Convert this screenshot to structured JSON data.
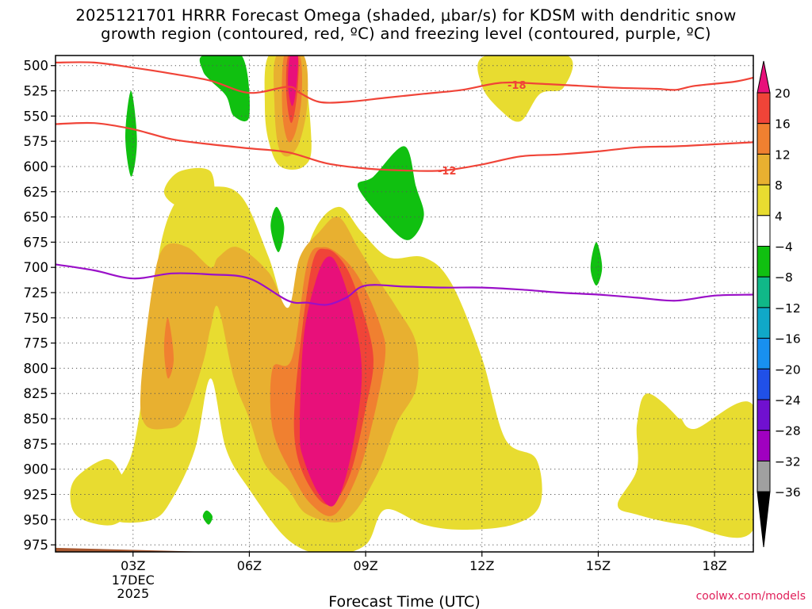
{
  "title_line1": "2025121701 HRRR Forecast Omega (shaded, μbar/s) for KDSM with dendritic snow",
  "title_line2": "growth region (contoured, red, ºC) and freezing level (contoured, purple, ºC)",
  "credit": "coolwx.com/models",
  "chart_data": {
    "type": "heatmap",
    "xlabel": "Forecast Time (UTC)",
    "ylabel": "",
    "xlim": [
      1,
      19
    ],
    "ylim": [
      490,
      982
    ],
    "x_ticks": [
      {
        "x": 3,
        "label": "03Z"
      },
      {
        "x": 6,
        "label": "06Z"
      },
      {
        "x": 9,
        "label": "09Z"
      },
      {
        "x": 12,
        "label": "12Z"
      },
      {
        "x": 15,
        "label": "15Z"
      },
      {
        "x": 18,
        "label": "18Z"
      }
    ],
    "date_label": [
      "17DEC",
      "2025"
    ],
    "y_ticks": [
      500,
      525,
      550,
      575,
      600,
      625,
      650,
      675,
      700,
      725,
      750,
      775,
      800,
      825,
      850,
      875,
      900,
      925,
      950,
      975
    ],
    "colorbar": {
      "ticks": [
        20,
        16,
        12,
        8,
        4,
        -4,
        -8,
        -12,
        -16,
        -20,
        -24,
        -28,
        -32,
        -36
      ],
      "colors": [
        "#e8107a",
        "#f04438",
        "#f08030",
        "#e8b030",
        "#e8dc30",
        "#ffffff",
        "#10c010",
        "#10b888",
        "#10a8c8",
        "#1890f0",
        "#2050e8",
        "#7010d0",
        "#a000c0",
        "#a0a0a0",
        "#000000"
      ]
    },
    "levels": [
      {
        "name": "4-8",
        "color": "#e8dc30",
        "regions": [
          [
            [
              2.5,
              920
            ],
            [
              3,
              880
            ],
            [
              3.4,
              780
            ],
            [
              3.7,
              680
            ],
            [
              4.2,
              630
            ],
            [
              5,
              620
            ],
            [
              5.8,
              630
            ],
            [
              6.5,
              690
            ],
            [
              7.1,
              755
            ],
            [
              7.6,
              670
            ],
            [
              8.3,
              640
            ],
            [
              8.9,
              665
            ],
            [
              9.6,
              690
            ],
            [
              10.5,
              690
            ],
            [
              11.2,
              715
            ],
            [
              12,
              790
            ],
            [
              12.6,
              870
            ],
            [
              13.4,
              890
            ],
            [
              13.5,
              935
            ],
            [
              12.8,
              955
            ],
            [
              11.5,
              960
            ],
            [
              10.5,
              955
            ],
            [
              9.5,
              940
            ],
            [
              9,
              975
            ],
            [
              8,
              985
            ],
            [
              7,
              970
            ],
            [
              6,
              920
            ],
            [
              5.4,
              880
            ],
            [
              5,
              810
            ],
            [
              4.6,
              880
            ],
            [
              4,
              930
            ],
            [
              3.5,
              950
            ],
            [
              2.5,
              950
            ]
          ],
          [
            [
              3.8,
              625
            ],
            [
              4.2,
              605
            ],
            [
              5,
              605
            ],
            [
              5,
              640
            ],
            [
              4.2,
              640
            ]
          ],
          [
            [
              7.3,
              490
            ],
            [
              7.6,
              575
            ],
            [
              7.4,
              600
            ],
            [
              6.8,
              600
            ],
            [
              6.5,
              575
            ],
            [
              6.4,
              540
            ],
            [
              6.5,
              490
            ]
          ],
          [
            [
              12.1,
              490
            ],
            [
              14.2,
              490
            ],
            [
              14.1,
              522
            ],
            [
              13.5,
              528
            ],
            [
              13,
              555
            ],
            [
              12.5,
              545
            ],
            [
              12,
              520
            ]
          ],
          [
            [
              16.3,
              825
            ],
            [
              17.3,
              860
            ],
            [
              17.5,
              885
            ],
            [
              17,
              880
            ],
            [
              17.1,
              850
            ],
            [
              17.5,
              860
            ],
            [
              19,
              837
            ],
            [
              19,
              960
            ],
            [
              17.2,
              955
            ],
            [
              16,
              945
            ],
            [
              15.5,
              935
            ],
            [
              16,
              900
            ],
            [
              16,
              855
            ]
          ],
          [
            [
              1.5,
              910
            ],
            [
              2.3,
              890
            ],
            [
              2.7,
              905
            ],
            [
              3,
              935
            ],
            [
              2.5,
              955
            ],
            [
              1.7,
              950
            ],
            [
              1.4,
              935
            ]
          ]
        ]
      },
      {
        "name": "8-12",
        "color": "#e8b030",
        "regions": [
          [
            [
              3.2,
              820
            ],
            [
              3.5,
              720
            ],
            [
              3.8,
              680
            ],
            [
              4.4,
              680
            ],
            [
              5,
              700
            ],
            [
              5.2,
              690
            ],
            [
              5.7,
              680
            ],
            [
              6.5,
              705
            ],
            [
              7,
              740
            ],
            [
              7.3,
              690
            ],
            [
              7.8,
              665
            ],
            [
              8.3,
              650
            ],
            [
              8.8,
              680
            ],
            [
              9.2,
              705
            ],
            [
              9.8,
              740
            ],
            [
              10.3,
              775
            ],
            [
              10.3,
              820
            ],
            [
              9.8,
              855
            ],
            [
              9.3,
              905
            ],
            [
              8.5,
              950
            ],
            [
              7.5,
              945
            ],
            [
              7,
              920
            ],
            [
              6.4,
              895
            ],
            [
              6,
              850
            ],
            [
              5.6,
              810
            ],
            [
              5.2,
              740
            ],
            [
              5,
              760
            ],
            [
              4.8,
              795
            ],
            [
              4.3,
              850
            ],
            [
              3.8,
              860
            ],
            [
              3.3,
              855
            ]
          ],
          [
            [
              6.7,
              490
            ],
            [
              7.4,
              490
            ],
            [
              7.5,
              535
            ],
            [
              7.3,
              575
            ],
            [
              7,
              590
            ],
            [
              6.75,
              580
            ],
            [
              6.65,
              540
            ]
          ]
        ]
      },
      {
        "name": "12-16",
        "color": "#f08030",
        "regions": [
          [
            [
              6.6,
              800
            ],
            [
              7.1,
              790
            ],
            [
              7.5,
              695
            ],
            [
              7.9,
              680
            ],
            [
              8.4,
              690
            ],
            [
              8.9,
              715
            ],
            [
              9.4,
              760
            ],
            [
              9.5,
              790
            ],
            [
              9.2,
              850
            ],
            [
              8.8,
              905
            ],
            [
              8.2,
              945
            ],
            [
              7.6,
              935
            ],
            [
              7.1,
              905
            ],
            [
              6.6,
              860
            ]
          ],
          [
            [
              3.9,
              750
            ],
            [
              4.05,
              790
            ],
            [
              3.9,
              810
            ],
            [
              3.8,
              780
            ]
          ],
          [
            [
              6.9,
              490
            ],
            [
              7.3,
              490
            ],
            [
              7.35,
              530
            ],
            [
              7.2,
              565
            ],
            [
              7,
              575
            ],
            [
              6.85,
              545
            ]
          ]
        ]
      },
      {
        "name": "16-20",
        "color": "#f04438",
        "regions": [
          [
            [
              7.2,
              820
            ],
            [
              7.6,
              700
            ],
            [
              8,
              682
            ],
            [
              8.5,
              700
            ],
            [
              8.9,
              740
            ],
            [
              9.2,
              790
            ],
            [
              9,
              840
            ],
            [
              8.6,
              905
            ],
            [
              8.1,
              935
            ],
            [
              7.6,
              920
            ],
            [
              7.2,
              880
            ]
          ],
          [
            [
              7,
              490
            ],
            [
              7.25,
              490
            ],
            [
              7.25,
              520
            ],
            [
              7.15,
              550
            ],
            [
              7.05,
              555
            ],
            [
              6.95,
              525
            ]
          ]
        ]
      },
      {
        "name": "20+",
        "color": "#e8107a",
        "regions": [
          [
            [
              7.3,
              860
            ],
            [
              7.4,
              770
            ],
            [
              7.7,
              715
            ],
            [
              8,
              690
            ],
            [
              8.3,
              700
            ],
            [
              8.7,
              750
            ],
            [
              8.9,
              810
            ],
            [
              8.6,
              890
            ],
            [
              8.2,
              935
            ],
            [
              7.8,
              925
            ],
            [
              7.4,
              890
            ]
          ],
          [
            [
              7.05,
              490
            ],
            [
              7.25,
              490
            ],
            [
              7.2,
              525
            ],
            [
              7.1,
              540
            ],
            [
              7,
              520
            ]
          ]
        ]
      },
      {
        "name": "-4 to -8",
        "color": "#10c010",
        "regions": [
          [
            [
              4.8,
              490
            ],
            [
              5.8,
              490
            ],
            [
              6,
              550
            ],
            [
              5.6,
              550
            ],
            [
              5.4,
              530
            ],
            [
              5,
              515
            ],
            [
              4.8,
              505
            ]
          ],
          [
            [
              2.95,
              525
            ],
            [
              3.1,
              575
            ],
            [
              2.95,
              610
            ],
            [
              2.8,
              570
            ]
          ],
          [
            [
              6.7,
              640
            ],
            [
              6.9,
              660
            ],
            [
              6.75,
              685
            ],
            [
              6.55,
              660
            ]
          ],
          [
            [
              9.2,
              610
            ],
            [
              10,
              580
            ],
            [
              10.3,
              620
            ],
            [
              10.5,
              650
            ],
            [
              10.1,
              673
            ],
            [
              9.5,
              655
            ],
            [
              8.8,
              620
            ]
          ],
          [
            [
              14.95,
              675
            ],
            [
              15.1,
              700
            ],
            [
              14.95,
              718
            ],
            [
              14.8,
              700
            ]
          ],
          [
            [
              4.9,
              941
            ],
            [
              5.05,
              947
            ],
            [
              4.95,
              955
            ],
            [
              4.8,
              947
            ]
          ]
        ]
      }
    ],
    "ground_color": "#a85830",
    "contours": [
      {
        "name": "-18 DGZ top",
        "color": "#f04438",
        "label": "-18",
        "label_at": [
          12.9,
          519
        ],
        "x": [
          1,
          2,
          3,
          4,
          5,
          6,
          7,
          7.3,
          7.8,
          8.5,
          9.5,
          10.5,
          11.5,
          12.5,
          13.5,
          14.5,
          15.5,
          16.5,
          17,
          17.5,
          18.5,
          19
        ],
        "y": [
          497,
          497,
          502,
          508,
          515,
          527,
          521,
          527,
          536,
          536,
          532,
          528,
          524,
          517,
          518,
          520,
          522,
          523,
          524,
          520,
          516,
          512
        ]
      },
      {
        "name": "-12 DGZ bottom",
        "color": "#f04438",
        "label": "-12",
        "label_at": [
          11.1,
          604
        ],
        "x": [
          1,
          2,
          3,
          4,
          5,
          6,
          7,
          8,
          9,
          10,
          11,
          12,
          13,
          14,
          15,
          16,
          17,
          18,
          19
        ],
        "y": [
          558,
          557,
          563,
          573,
          578,
          582,
          586,
          597,
          602,
          604,
          604,
          598,
          590,
          588,
          585,
          581,
          580,
          578,
          576
        ]
      },
      {
        "name": "freezing level",
        "color": "#9a10c8",
        "x": [
          1,
          2,
          3,
          4,
          5,
          6,
          7,
          7.5,
          8,
          8.5,
          9,
          10,
          11,
          12,
          13,
          14,
          15,
          16,
          17,
          18,
          19
        ],
        "y": [
          697,
          703,
          711,
          706,
          707,
          711,
          733,
          735,
          737,
          730,
          718,
          719,
          720,
          720,
          722,
          725,
          727,
          730,
          733,
          728,
          727
        ]
      }
    ]
  }
}
